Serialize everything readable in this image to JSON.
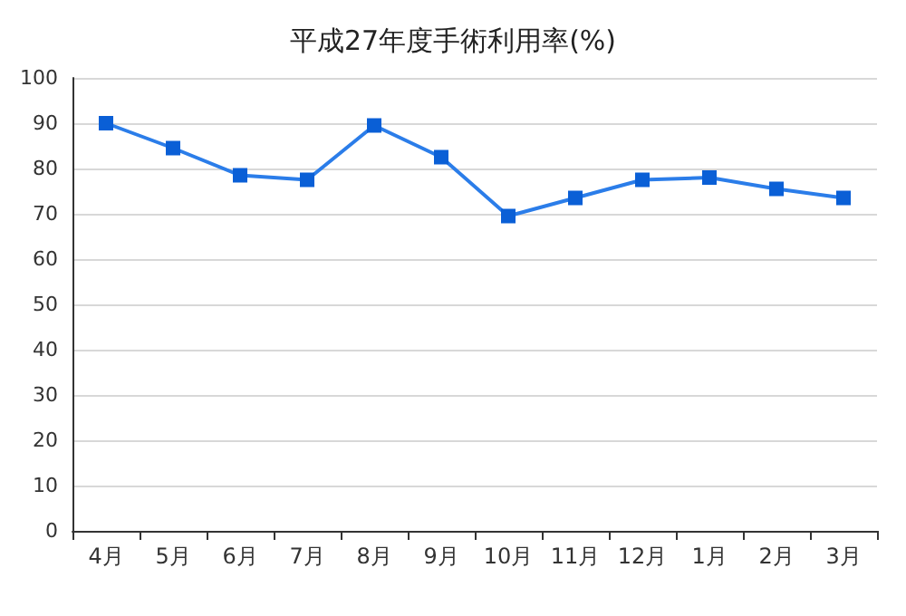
{
  "chart_data": {
    "type": "line",
    "title": "平成27年度手術利用率(%)",
    "categories": [
      "4月",
      "5月",
      "6月",
      "7月",
      "8月",
      "9月",
      "10月",
      "11月",
      "12月",
      "1月",
      "2月",
      "3月"
    ],
    "series": [
      {
        "color": "#2b7de9",
        "values": [
          90,
          84.5,
          78.5,
          77.5,
          89.5,
          82.5,
          69.5,
          73.5,
          77.5,
          78,
          75.5,
          73.5
        ]
      }
    ],
    "ylim": [
      0,
      100
    ],
    "yticks": [
      0,
      10,
      20,
      30,
      40,
      50,
      60,
      70,
      80,
      90,
      100
    ],
    "grid": "y",
    "marker": "square",
    "line_style": "solid"
  }
}
